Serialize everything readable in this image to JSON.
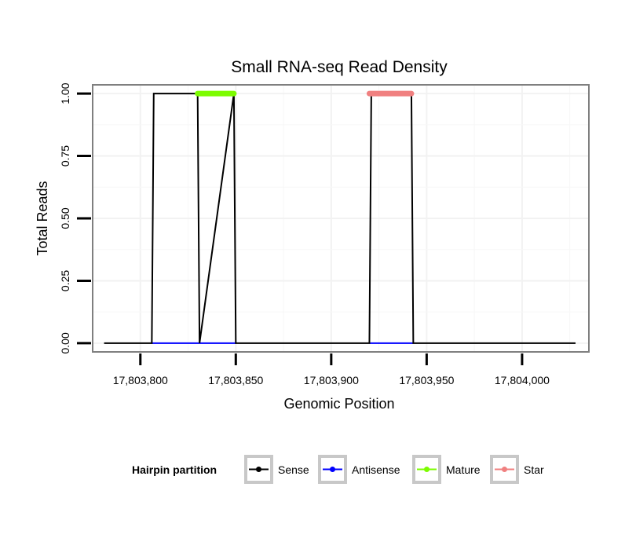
{
  "chart_data": {
    "type": "line",
    "title": "Small RNA-seq Read Density",
    "xlabel": "Genomic Position",
    "ylabel": "Total Reads",
    "xlim": [
      17803775,
      17804035
    ],
    "ylim": [
      -0.035,
      1.035
    ],
    "x_ticks": [
      17803800,
      17803850,
      17803900,
      17803950,
      17804000
    ],
    "x_tick_labels": [
      "17,803,800",
      "17,803,850",
      "17,803,900",
      "17,803,950",
      "17,804,000"
    ],
    "y_ticks": [
      0,
      0.25,
      0.5,
      0.75,
      1.0
    ],
    "y_tick_labels": [
      "0.00",
      "0.25",
      "0.50",
      "0.75",
      "1.00"
    ],
    "grid": true,
    "legend_position": "bottom",
    "legend_title": "Hairpin partition",
    "series": [
      {
        "name": "Sense",
        "color": "#000000",
        "width": 2,
        "x": [
          17803781,
          17803806,
          17803807,
          17803830,
          17803831,
          17803849,
          17803850,
          17803920,
          17803921,
          17803942,
          17803943,
          17804028
        ],
        "y": [
          0,
          0,
          1,
          1,
          0,
          1,
          0,
          0,
          1,
          1,
          0,
          0
        ]
      },
      {
        "name": "Antisense",
        "color": "#0000ff",
        "width": 2,
        "x": [
          17803806,
          17803850,
          17803920,
          17803943
        ],
        "y": [
          0,
          0,
          0,
          0
        ],
        "segments": [
          [
            0,
            1
          ],
          [
            2,
            3
          ]
        ]
      },
      {
        "name": "Mature",
        "color": "#7cfc00",
        "width": 7,
        "x": [
          17803830,
          17803849
        ],
        "y": [
          1,
          1
        ]
      },
      {
        "name": "Star",
        "color": "#f08080",
        "width": 7,
        "x": [
          17803920,
          17803942
        ],
        "y": [
          1,
          1
        ]
      }
    ]
  }
}
